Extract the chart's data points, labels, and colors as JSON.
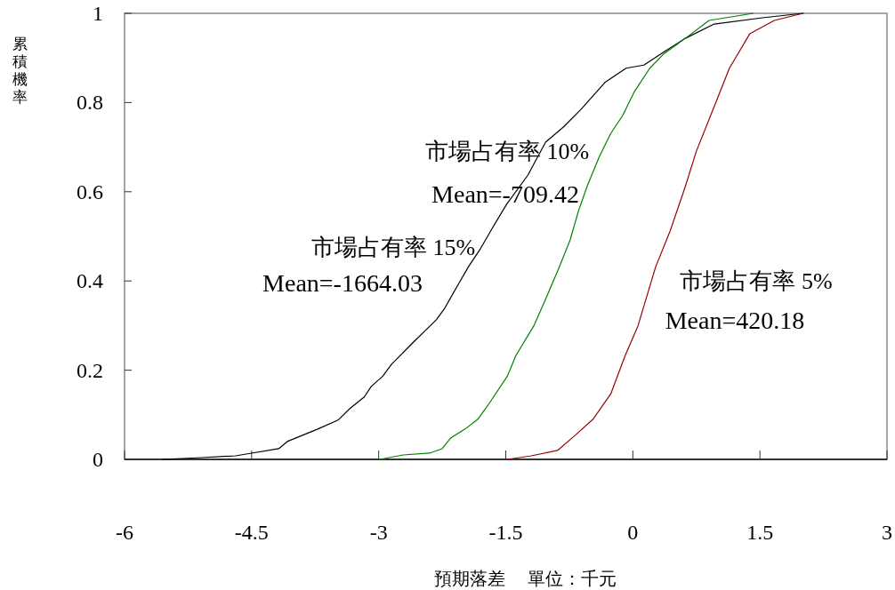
{
  "chart_data": {
    "type": "line",
    "xlabel": "預期落差     單位：千元",
    "ylabel": "累積機率",
    "xlim": [
      -6,
      3
    ],
    "ylim": [
      0,
      1
    ],
    "xticks": [
      -6,
      -4.5,
      -3,
      -1.5,
      0,
      1.5,
      3
    ],
    "yticks": [
      0,
      0.2,
      0.4,
      0.6,
      0.8,
      1
    ],
    "grid": false,
    "marker": "none",
    "series": [
      {
        "name": "市場占有率 15%",
        "color": "#000000",
        "x": [
          -5.55,
          -5.09,
          -4.69,
          -4.5,
          -4.18,
          -4.08,
          -3.72,
          -3.48,
          -3.34,
          -3.17,
          -3.09,
          -2.95,
          -2.85,
          -2.61,
          -2.32,
          -2.22,
          -2.08,
          -1.94,
          -1.8,
          -1.66,
          -1.49,
          -1.24,
          -1.03,
          -0.82,
          -0.61,
          -0.33,
          -0.08,
          0.13,
          0.37,
          0.62,
          0.96,
          1.53,
          2.01
        ],
        "values": [
          0,
          0.004,
          0.008,
          0.014,
          0.024,
          0.04,
          0.068,
          0.088,
          0.114,
          0.14,
          0.163,
          0.187,
          0.213,
          0.259,
          0.313,
          0.339,
          0.386,
          0.432,
          0.472,
          0.518,
          0.572,
          0.637,
          0.711,
          0.745,
          0.785,
          0.845,
          0.877,
          0.884,
          0.914,
          0.944,
          0.976,
          0.99,
          1
        ]
      },
      {
        "name": "市場占有率 10%",
        "color": "#008000",
        "x": [
          -2.99,
          -2.71,
          -2.4,
          -2.25,
          -2.15,
          -1.98,
          -1.83,
          -1.69,
          -1.48,
          -1.38,
          -1.17,
          -1.03,
          -0.88,
          -0.74,
          -0.64,
          -0.54,
          -0.4,
          -0.26,
          -0.12,
          0.02,
          0.2,
          0.37,
          0.62,
          0.9,
          1.42
        ],
        "values": [
          0,
          0.01,
          0.014,
          0.024,
          0.048,
          0.068,
          0.09,
          0.127,
          0.187,
          0.233,
          0.299,
          0.359,
          0.426,
          0.492,
          0.558,
          0.612,
          0.677,
          0.731,
          0.771,
          0.825,
          0.877,
          0.91,
          0.944,
          0.984,
          1
        ]
      },
      {
        "name": "市場占有率 5%",
        "color": "#990000",
        "x": [
          -1.48,
          -1.2,
          -0.89,
          -0.68,
          -0.47,
          -0.26,
          -0.09,
          0.06,
          0.27,
          0.44,
          0.62,
          0.75,
          0.96,
          1.14,
          1.38,
          1.67,
          2.01
        ],
        "values": [
          0,
          0.008,
          0.02,
          0.054,
          0.09,
          0.147,
          0.233,
          0.299,
          0.432,
          0.512,
          0.612,
          0.691,
          0.791,
          0.877,
          0.954,
          0.984,
          1
        ]
      }
    ],
    "annotations": [
      "Mean=-1664.03",
      "Mean=-709.42",
      "Mean=420.18"
    ]
  }
}
